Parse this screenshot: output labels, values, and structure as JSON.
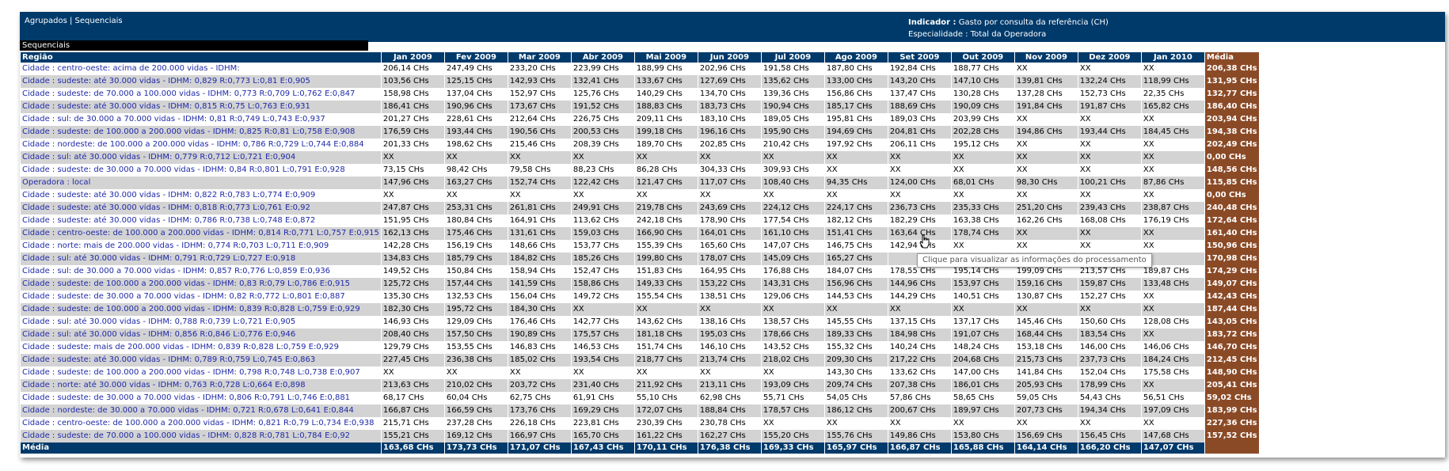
{
  "header": {
    "link_agrupados": "Agrupados",
    "separator": " | ",
    "link_sequenciais": "Sequenciais",
    "indicador_label": "Indicador :",
    "indicador_value": " Gasto por consulta da referência (CH)",
    "especialidade_text": "Especialidade : Total da Operadora"
  },
  "section_title": "Sequenciais",
  "tooltip": "Clique para visualizar as informações do processamento",
  "columns": {
    "regiao": "Região",
    "months": [
      "Jan 2009",
      "Fev 2009",
      "Mar 2009",
      "Abr 2009",
      "Mai 2009",
      "Jun 2009",
      "Jul 2009",
      "Ago 2009",
      "Set 2009",
      "Out 2009",
      "Nov 2009",
      "Dez 2009",
      "Jan 2010"
    ],
    "media": "Média"
  },
  "rows": [
    {
      "regiao": "Cidade : centro-oeste: acima de 200.000 vidas - IDHM:",
      "values": [
        "206,14 CHs",
        "247,49 CHs",
        "233,20 CHs",
        "223,99 CHs",
        "188,99 CHs",
        "202,96 CHs",
        "191,58 CHs",
        "187,80 CHs",
        "192,84 CHs",
        "188,77 CHs",
        "XX",
        "XX",
        "XX"
      ],
      "media": "206,38 CHs"
    },
    {
      "regiao": "Cidade : sudeste: até 30.000 vidas - IDHM: 0,829 R:0,773 L:0,81 E:0,905",
      "values": [
        "103,56 CHs",
        "125,15 CHs",
        "142,93 CHs",
        "132,41 CHs",
        "133,67 CHs",
        "127,69 CHs",
        "135,62 CHs",
        "133,00 CHs",
        "143,20 CHs",
        "147,10 CHs",
        "139,81 CHs",
        "132,24 CHs",
        "118,99 CHs"
      ],
      "media": "131,95 CHs"
    },
    {
      "regiao": "Cidade : sudeste: de 70.000 a 100.000 vidas - IDHM: 0,773 R:0,709 L:0,762 E:0,847",
      "values": [
        "158,98 CHs",
        "137,04 CHs",
        "152,97 CHs",
        "125,76 CHs",
        "140,29 CHs",
        "134,70 CHs",
        "139,36 CHs",
        "156,86 CHs",
        "137,47 CHs",
        "130,28 CHs",
        "137,28 CHs",
        "152,73 CHs",
        "22,35 CHs"
      ],
      "media": "132,77 CHs"
    },
    {
      "regiao": "Cidade : sudeste: até 30.000 vidas - IDHM: 0,815 R:0,75 L:0,763 E:0,931",
      "values": [
        "186,41 CHs",
        "190,96 CHs",
        "173,67 CHs",
        "191,52 CHs",
        "188,83 CHs",
        "183,73 CHs",
        "190,94 CHs",
        "185,17 CHs",
        "188,69 CHs",
        "190,09 CHs",
        "191,84 CHs",
        "191,87 CHs",
        "165,82 CHs"
      ],
      "media": "186,40 CHs"
    },
    {
      "regiao": "Cidade : sul: de 30.000 a 70.000 vidas - IDHM: 0,81 R:0,749 L:0,743 E:0,937",
      "values": [
        "201,27 CHs",
        "228,61 CHs",
        "212,64 CHs",
        "226,75 CHs",
        "209,11 CHs",
        "183,10 CHs",
        "189,05 CHs",
        "195,81 CHs",
        "189,03 CHs",
        "203,99 CHs",
        "XX",
        "XX",
        "XX"
      ],
      "media": "203,94 CHs"
    },
    {
      "regiao": "Cidade : sudeste: de 100.000 a 200.000 vidas - IDHM: 0,825 R:0,81 L:0,758 E:0,908",
      "values": [
        "176,59 CHs",
        "193,44 CHs",
        "190,56 CHs",
        "200,53 CHs",
        "199,18 CHs",
        "196,16 CHs",
        "195,90 CHs",
        "194,69 CHs",
        "204,81 CHs",
        "202,28 CHs",
        "194,86 CHs",
        "193,44 CHs",
        "184,45 CHs"
      ],
      "media": "194,38 CHs"
    },
    {
      "regiao": "Cidade : nordeste: de 100.000 a 200.000 vidas - IDHM: 0,786 R:0,729 L:0,744 E:0,884",
      "values": [
        "201,33 CHs",
        "198,62 CHs",
        "215,46 CHs",
        "208,39 CHs",
        "189,70 CHs",
        "202,85 CHs",
        "210,42 CHs",
        "197,92 CHs",
        "206,11 CHs",
        "195,12 CHs",
        "XX",
        "XX",
        "XX"
      ],
      "media": "202,49 CHs"
    },
    {
      "regiao": "Cidade : sul: até 30.000 vidas - IDHM: 0,779 R:0,712 L:0,721 E:0,904",
      "values": [
        "XX",
        "XX",
        "XX",
        "XX",
        "XX",
        "XX",
        "XX",
        "XX",
        "XX",
        "XX",
        "XX",
        "XX",
        "XX"
      ],
      "media": "0,00 CHs"
    },
    {
      "regiao": "Cidade : sudeste: de 30.000 a 70.000 vidas - IDHM: 0,84 R:0,801 L:0,791 E:0,928",
      "values": [
        "73,15 CHs",
        "98,42 CHs",
        "79,58 CHs",
        "88,23 CHs",
        "86,28 CHs",
        "304,33 CHs",
        "309,93 CHs",
        "XX",
        "XX",
        "XX",
        "XX",
        "XX",
        "XX"
      ],
      "media": "148,56 CHs"
    },
    {
      "regiao": "Operadora : local",
      "values": [
        "147,96 CHs",
        "163,27 CHs",
        "152,74 CHs",
        "122,42 CHs",
        "121,47 CHs",
        "117,07 CHs",
        "108,40 CHs",
        "94,35 CHs",
        "124,00 CHs",
        "68,01 CHs",
        "98,30 CHs",
        "100,21 CHs",
        "87,86 CHs"
      ],
      "media": "115,85 CHs"
    },
    {
      "regiao": "Cidade : sudeste: até 30.000 vidas - IDHM: 0,822 R:0,783 L:0,774 E:0,909",
      "values": [
        "XX",
        "XX",
        "XX",
        "XX",
        "XX",
        "XX",
        "XX",
        "XX",
        "XX",
        "XX",
        "XX",
        "XX",
        "XX"
      ],
      "media": "0,00 CHs"
    },
    {
      "regiao": "Cidade : sudeste: até 30.000 vidas - IDHM: 0,818 R:0,773 L:0,761 E:0,92",
      "values": [
        "247,87 CHs",
        "253,31 CHs",
        "261,81 CHs",
        "249,91 CHs",
        "219,78 CHs",
        "243,69 CHs",
        "224,12 CHs",
        "224,17 CHs",
        "236,73 CHs",
        "235,33 CHs",
        "251,20 CHs",
        "239,43 CHs",
        "238,87 CHs"
      ],
      "media": "240,48 CHs"
    },
    {
      "regiao": "Cidade : sudeste: até 30.000 vidas - IDHM: 0,786 R:0,738 L:0,748 E:0,872",
      "values": [
        "151,95 CHs",
        "180,84 CHs",
        "164,91 CHs",
        "113,62 CHs",
        "242,18 CHs",
        "178,90 CHs",
        "177,54 CHs",
        "182,12 CHs",
        "182,29 CHs",
        "163,38 CHs",
        "162,26 CHs",
        "168,08 CHs",
        "176,19 CHs"
      ],
      "media": "172,64 CHs"
    },
    {
      "regiao": "Cidade : centro-oeste: de 100.000 a 200.000 vidas - IDHM: 0,814 R:0,771 L:0,757 E:0,915",
      "values": [
        "162,13 CHs",
        "175,46 CHs",
        "131,61 CHs",
        "159,03 CHs",
        "166,90 CHs",
        "164,01 CHs",
        "161,10 CHs",
        "151,41 CHs",
        "163,64 CHs",
        "178,74 CHs",
        "XX",
        "XX",
        "XX"
      ],
      "media": "161,40 CHs"
    },
    {
      "regiao": "Cidade : norte: mais de 200.000 vidas - IDHM: 0,774 R:0,703 L:0,711 E:0,909",
      "values": [
        "142,28 CHs",
        "156,19 CHs",
        "148,66 CHs",
        "153,77 CHs",
        "155,39 CHs",
        "165,60 CHs",
        "147,07 CHs",
        "146,75 CHs",
        "142,94 CHs",
        "XX",
        "XX",
        "XX",
        "XX"
      ],
      "media": "150,96 CHs"
    },
    {
      "regiao": "Cidade : sul: até 30.000 vidas - IDHM: 0,791 R:0,729 L:0,727 E:0,918",
      "values": [
        "134,83 CHs",
        "185,79 CHs",
        "184,82 CHs",
        "185,26 CHs",
        "199,80 CHs",
        "178,07 CHs",
        "145,09 CHs",
        "165,27 CHs",
        "",
        "",
        "",
        "",
        ""
      ],
      "media": "170,98 CHs"
    },
    {
      "regiao": "Cidade : sul: de 30.000 a 70.000 vidas - IDHM: 0,857 R:0,776 L:0,859 E:0,936",
      "values": [
        "149,52 CHs",
        "150,84 CHs",
        "158,94 CHs",
        "152,47 CHs",
        "151,83 CHs",
        "164,95 CHs",
        "176,88 CHs",
        "184,07 CHs",
        "178,55 CHs",
        "195,14 CHs",
        "199,09 CHs",
        "213,57 CHs",
        "189,87 CHs"
      ],
      "media": "174,29 CHs"
    },
    {
      "regiao": "Cidade : sudeste: de 100.000 a 200.000 vidas - IDHM: 0,83 R:0,79 L:0,786 E:0,915",
      "values": [
        "125,72 CHs",
        "157,44 CHs",
        "141,59 CHs",
        "158,86 CHs",
        "149,33 CHs",
        "153,22 CHs",
        "143,31 CHs",
        "156,96 CHs",
        "144,96 CHs",
        "153,97 CHs",
        "159,16 CHs",
        "159,87 CHs",
        "133,48 CHs"
      ],
      "media": "149,07 CHs"
    },
    {
      "regiao": "Cidade : sudeste: de 30.000 a 70.000 vidas - IDHM: 0,82 R:0,772 L:0,801 E:0,887",
      "values": [
        "135,30 CHs",
        "132,53 CHs",
        "156,04 CHs",
        "149,72 CHs",
        "155,54 CHs",
        "138,51 CHs",
        "129,06 CHs",
        "144,53 CHs",
        "144,29 CHs",
        "140,51 CHs",
        "130,87 CHs",
        "152,27 CHs",
        "XX"
      ],
      "media": "142,43 CHs"
    },
    {
      "regiao": "Cidade : sudeste: de 100.000 a 200.000 vidas - IDHM: 0,839 R:0,828 L:0,759 E:0,929",
      "values": [
        "182,30 CHs",
        "195,72 CHs",
        "184,30 CHs",
        "XX",
        "XX",
        "XX",
        "XX",
        "XX",
        "XX",
        "XX",
        "XX",
        "XX",
        "XX"
      ],
      "media": "187,44 CHs"
    },
    {
      "regiao": "Cidade : sul: até 30.000 vidas - IDHM: 0,788 R:0,739 L:0,721 E:0,905",
      "values": [
        "146,93 CHs",
        "129,09 CHs",
        "176,46 CHs",
        "142,77 CHs",
        "143,62 CHs",
        "138,16 CHs",
        "138,57 CHs",
        "145,55 CHs",
        "137,15 CHs",
        "137,17 CHs",
        "145,46 CHs",
        "150,60 CHs",
        "128,08 CHs"
      ],
      "media": "143,05 CHs"
    },
    {
      "regiao": "Cidade : sul: até 30.000 vidas - IDHM: 0,856 R:0,846 L:0,776 E:0,946",
      "values": [
        "208,40 CHs",
        "157,50 CHs",
        "190,89 CHs",
        "175,57 CHs",
        "181,18 CHs",
        "195,03 CHs",
        "178,66 CHs",
        "189,33 CHs",
        "184,98 CHs",
        "191,07 CHs",
        "168,44 CHs",
        "183,54 CHs",
        "XX"
      ],
      "media": "183,72 CHs"
    },
    {
      "regiao": "Cidade : sudeste: mais de 200.000 vidas - IDHM: 0,839 R:0,828 L:0,759 E:0,929",
      "values": [
        "129,79 CHs",
        "153,55 CHs",
        "146,83 CHs",
        "146,53 CHs",
        "151,74 CHs",
        "146,10 CHs",
        "143,52 CHs",
        "155,32 CHs",
        "140,24 CHs",
        "148,24 CHs",
        "153,18 CHs",
        "146,00 CHs",
        "146,06 CHs"
      ],
      "media": "146,70 CHs"
    },
    {
      "regiao": "Cidade : sudeste: até 30.000 vidas - IDHM: 0,789 R:0,759 L:0,745 E:0,863",
      "values": [
        "227,45 CHs",
        "236,38 CHs",
        "185,02 CHs",
        "193,54 CHs",
        "218,77 CHs",
        "213,74 CHs",
        "218,02 CHs",
        "209,30 CHs",
        "217,22 CHs",
        "204,68 CHs",
        "215,73 CHs",
        "237,73 CHs",
        "184,24 CHs"
      ],
      "media": "212,45 CHs"
    },
    {
      "regiao": "Cidade : sudeste: de 100.000 a 200.000 vidas - IDHM: 0,798 R:0,748 L:0,738 E:0,907",
      "values": [
        "XX",
        "XX",
        "XX",
        "XX",
        "XX",
        "XX",
        "XX",
        "143,30 CHs",
        "133,62 CHs",
        "147,00 CHs",
        "141,84 CHs",
        "152,04 CHs",
        "175,58 CHs"
      ],
      "media": "148,90 CHs"
    },
    {
      "regiao": "Cidade : norte: até 30.000 vidas - IDHM: 0,763 R:0,728 L:0,664 E:0,898",
      "values": [
        "213,63 CHs",
        "210,02 CHs",
        "203,72 CHs",
        "231,40 CHs",
        "211,92 CHs",
        "213,11 CHs",
        "193,09 CHs",
        "209,74 CHs",
        "207,38 CHs",
        "186,01 CHs",
        "205,93 CHs",
        "178,99 CHs",
        "XX"
      ],
      "media": "205,41 CHs"
    },
    {
      "regiao": "Cidade : sudeste: de 30.000 a 70.000 vidas - IDHM: 0,806 R:0,791 L:0,746 E:0,881",
      "values": [
        "68,17 CHs",
        "60,04 CHs",
        "62,75 CHs",
        "61,91 CHs",
        "55,10 CHs",
        "62,98 CHs",
        "55,71 CHs",
        "54,05 CHs",
        "57,86 CHs",
        "58,65 CHs",
        "59,05 CHs",
        "54,43 CHs",
        "56,51 CHs"
      ],
      "media": "59,02 CHs"
    },
    {
      "regiao": "Cidade : nordeste: de 30.000 a 70.000 vidas - IDHM: 0,721 R:0,678 L:0,641 E:0,844",
      "values": [
        "166,87 CHs",
        "166,59 CHs",
        "173,76 CHs",
        "169,29 CHs",
        "172,07 CHs",
        "188,84 CHs",
        "178,57 CHs",
        "186,12 CHs",
        "200,67 CHs",
        "189,97 CHs",
        "207,73 CHs",
        "194,34 CHs",
        "197,09 CHs"
      ],
      "media": "183,99 CHs"
    },
    {
      "regiao": "Cidade : centro-oeste: de 100.000 a 200.000 vidas - IDHM: 0,821 R:0,79 L:0,734 E:0,938",
      "values": [
        "215,71 CHs",
        "237,28 CHs",
        "226,18 CHs",
        "223,81 CHs",
        "230,39 CHs",
        "230,78 CHs",
        "XX",
        "XX",
        "XX",
        "XX",
        "XX",
        "XX",
        "XX"
      ],
      "media": "227,36 CHs"
    },
    {
      "regiao": "Cidade : sudeste: de 70.000 a 100.000 vidas - IDHM: 0,828 R:0,781 L:0,784 E:0,92",
      "values": [
        "155,21 CHs",
        "169,12 CHs",
        "166,97 CHs",
        "165,70 CHs",
        "161,22 CHs",
        "162,27 CHs",
        "155,20 CHs",
        "155,76 CHs",
        "149,86 CHs",
        "153,80 CHs",
        "156,69 CHs",
        "156,45 CHs",
        "147,68 CHs"
      ],
      "media": "157,52 CHs"
    }
  ],
  "footer": {
    "label": "Média",
    "values": [
      "163,68 CHs",
      "173,73 CHs",
      "171,07 CHs",
      "167,43 CHs",
      "170,11 CHs",
      "176,38 CHs",
      "169,33 CHs",
      "165,97 CHs",
      "166,87 CHs",
      "165,88 CHs",
      "164,14 CHs",
      "166,20 CHs",
      "147,07 CHs"
    ],
    "media": ""
  },
  "colors": {
    "header_blue": "#003a6b",
    "media_brown": "#8b4a26",
    "link_blue": "#1f2aa8",
    "row_gray": "#d3d3d3"
  }
}
